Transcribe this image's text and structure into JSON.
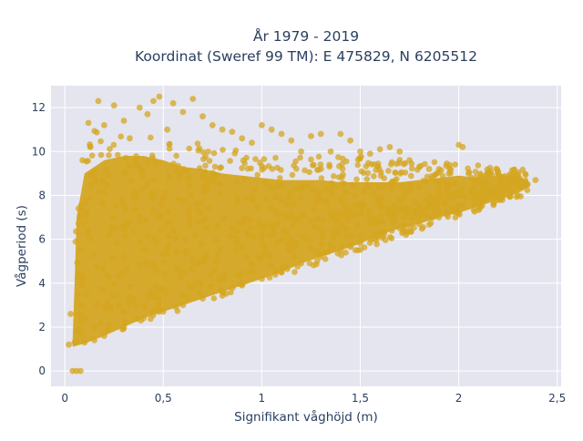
{
  "chart_data": {
    "type": "scatter",
    "title_line1": "År 1979 - 2019",
    "title_line2": "Koordinat (Sweref 99 TM): E 475829, N 6205512",
    "xlabel": "Signifikant våghöjd (m)",
    "ylabel": "Vågperiod (s)",
    "xlim": [
      -0.07,
      2.52
    ],
    "ylim": [
      -0.7,
      13.0
    ],
    "x_ticks": [
      0,
      0.5,
      1,
      1.5,
      2,
      2.5
    ],
    "x_tick_labels": [
      "0",
      "0,5",
      "1",
      "1,5",
      "2",
      "2,5"
    ],
    "y_ticks": [
      0,
      2,
      4,
      6,
      8,
      10,
      12
    ],
    "y_tick_labels": [
      "0",
      "2",
      "4",
      "6",
      "8",
      "10",
      "12"
    ],
    "grid": true,
    "marker_color": "#d4a520",
    "marker_opacity": 0.75,
    "plot_bgcolor": "#e5e5ef",
    "description": "Dense cloud of hourly sea-state observations; values below are representative points outlining the distribution.",
    "series": [
      {
        "points": [
          [
            0.02,
            1.2
          ],
          [
            0.03,
            2.6
          ],
          [
            0.04,
            0.0
          ],
          [
            0.06,
            0.0
          ],
          [
            0.08,
            0.0
          ],
          [
            0.05,
            1.3
          ],
          [
            0.06,
            1.8
          ],
          [
            0.07,
            3.5
          ],
          [
            0.08,
            5.5
          ],
          [
            0.07,
            7.4
          ],
          [
            0.09,
            9.6
          ],
          [
            0.12,
            11.3
          ],
          [
            0.13,
            10.2
          ],
          [
            0.15,
            9.1
          ],
          [
            0.17,
            12.3
          ],
          [
            0.2,
            11.2
          ],
          [
            0.25,
            12.1
          ],
          [
            0.3,
            11.4
          ],
          [
            0.33,
            10.6
          ],
          [
            0.38,
            12.0
          ],
          [
            0.42,
            11.7
          ],
          [
            0.45,
            12.3
          ],
          [
            0.48,
            12.5
          ],
          [
            0.52,
            11.0
          ],
          [
            0.55,
            12.2
          ],
          [
            0.6,
            11.8
          ],
          [
            0.65,
            12.4
          ],
          [
            0.7,
            11.6
          ],
          [
            0.75,
            11.2
          ],
          [
            0.8,
            11.0
          ],
          [
            0.85,
            10.9
          ],
          [
            0.9,
            10.6
          ],
          [
            0.95,
            10.4
          ],
          [
            1.0,
            11.2
          ],
          [
            1.05,
            11.0
          ],
          [
            1.1,
            10.8
          ],
          [
            1.15,
            10.5
          ],
          [
            1.2,
            10.0
          ],
          [
            1.25,
            10.7
          ],
          [
            1.3,
            10.8
          ],
          [
            1.35,
            10.0
          ],
          [
            1.4,
            10.8
          ],
          [
            1.45,
            10.5
          ],
          [
            1.5,
            10.0
          ],
          [
            1.55,
            9.9
          ],
          [
            1.6,
            10.1
          ],
          [
            1.65,
            10.2
          ],
          [
            1.7,
            10.0
          ],
          [
            1.75,
            9.6
          ],
          [
            1.8,
            9.3
          ],
          [
            1.85,
            9.2
          ],
          [
            1.9,
            9.2
          ],
          [
            1.95,
            9.0
          ],
          [
            2.0,
            10.3
          ],
          [
            2.02,
            10.2
          ],
          [
            2.05,
            9.0
          ],
          [
            2.1,
            8.7
          ],
          [
            2.15,
            8.5
          ],
          [
            2.2,
            8.4
          ],
          [
            2.25,
            8.8
          ],
          [
            2.3,
            8.6
          ],
          [
            2.35,
            8.5
          ],
          [
            2.39,
            8.7
          ],
          [
            2.3,
            8.0
          ],
          [
            2.2,
            7.8
          ],
          [
            2.1,
            7.5
          ],
          [
            2.0,
            7.2
          ],
          [
            1.9,
            7.0
          ],
          [
            1.8,
            6.7
          ],
          [
            1.7,
            6.5
          ],
          [
            1.6,
            6.2
          ],
          [
            1.5,
            5.8
          ],
          [
            1.4,
            5.5
          ],
          [
            1.3,
            5.2
          ],
          [
            1.2,
            4.9
          ],
          [
            1.1,
            4.5
          ],
          [
            1.0,
            4.2
          ],
          [
            0.9,
            3.9
          ],
          [
            0.8,
            3.6
          ],
          [
            0.7,
            3.3
          ],
          [
            0.6,
            3.0
          ],
          [
            0.5,
            2.7
          ],
          [
            0.4,
            2.4
          ],
          [
            0.3,
            2.0
          ],
          [
            0.2,
            1.6
          ],
          [
            0.15,
            1.4
          ],
          [
            0.1,
            1.3
          ]
        ]
      }
    ]
  }
}
